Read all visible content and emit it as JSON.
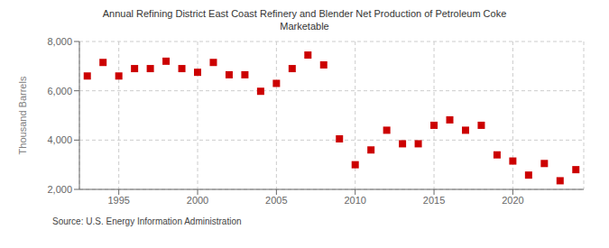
{
  "chart_data": {
    "type": "scatter",
    "title": "Annual Refining District East Coast Refinery and Blender Net Production of Petroleum Coke\nMarketable",
    "ylabel": "Thousand Barrels",
    "annotations": [
      "Source: U.S. Energy Information Administration"
    ],
    "x": [
      1993,
      1994,
      1995,
      1996,
      1997,
      1998,
      1999,
      2000,
      2001,
      2002,
      2003,
      2004,
      2005,
      2006,
      2007,
      2008,
      2009,
      2010,
      2011,
      2012,
      2013,
      2014,
      2015,
      2016,
      2017,
      2018,
      2019,
      2020,
      2021,
      2022,
      2023,
      2024
    ],
    "values": [
      6600,
      7150,
      6600,
      6900,
      6900,
      7200,
      6900,
      6750,
      7150,
      6650,
      6650,
      5980,
      6300,
      6900,
      7450,
      7050,
      4050,
      3000,
      3600,
      4400,
      3850,
      3850,
      4600,
      4820,
      4400,
      4600,
      3400,
      3150,
      2580,
      3050,
      2350,
      2800
    ],
    "color": "#cc0000",
    "marker": "square",
    "xlim": [
      1992.5,
      2024.5
    ],
    "xticks": [
      1995,
      2000,
      2005,
      2010,
      2015,
      2020
    ],
    "ylim": [
      2000,
      8000
    ],
    "yticks": [
      {
        "value": 2000,
        "label": "2,000"
      },
      {
        "value": 4000,
        "label": "4,000"
      },
      {
        "value": 6000,
        "label": "6,000"
      },
      {
        "value": 8000,
        "label": "8,000"
      }
    ],
    "grid": true
  }
}
